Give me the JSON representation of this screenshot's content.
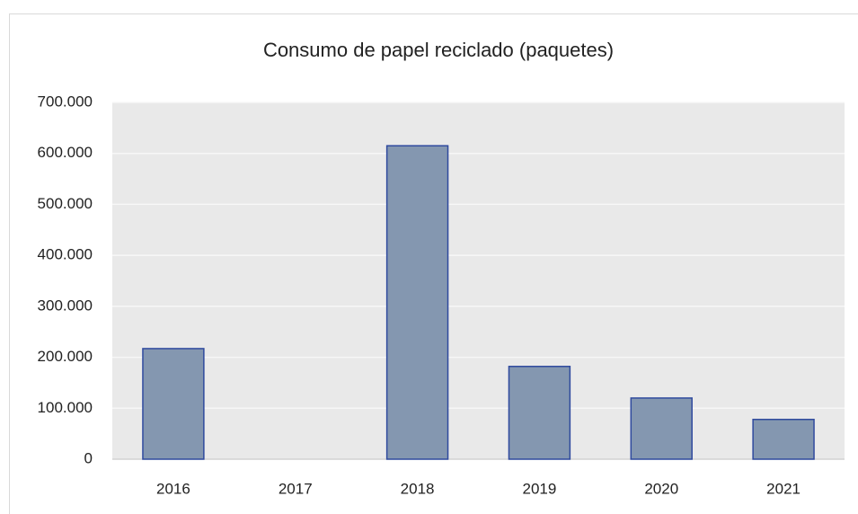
{
  "chart_data": {
    "type": "bar",
    "title": "Consumo de papel reciclado (paquetes)",
    "categories": [
      "2016",
      "2017",
      "2018",
      "2019",
      "2020",
      "2021"
    ],
    "values": [
      217000,
      0,
      615000,
      182000,
      120000,
      78000
    ],
    "color": "#8497b0",
    "ylim": [
      0,
      700000
    ],
    "yticks": [
      0,
      {
        "value": 100000,
        "label": "100.000"
      },
      {
        "value": 200000,
        "label": "200.000"
      },
      {
        "value": 300000,
        "label": "300.000"
      },
      {
        "value": 400000,
        "label": "400.000"
      },
      {
        "value": 500000,
        "label": "500.000"
      },
      {
        "value": 600000,
        "label": "600.000"
      },
      {
        "value": 700000,
        "label": "700.000"
      }
    ],
    "grid": true
  }
}
